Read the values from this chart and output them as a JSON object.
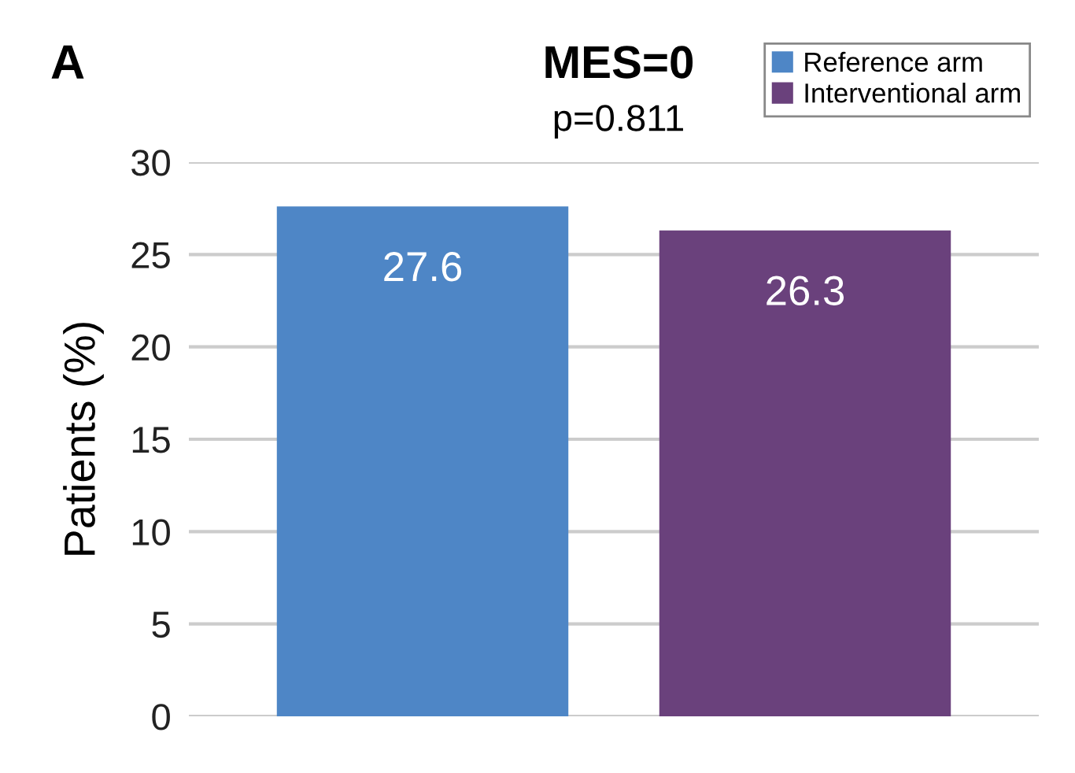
{
  "chart_data": {
    "type": "bar",
    "title": "MES=0",
    "subtitle": "p=0.811",
    "annotations": [
      "A"
    ],
    "ylabel": "Patients (%)",
    "categories": [
      null
    ],
    "series": [
      {
        "name": "Reference arm",
        "color": "#4e86c6",
        "values": [
          27.6
        ]
      },
      {
        "name": "Interventional arm",
        "color": "#6a417c",
        "values": [
          26.3
        ]
      }
    ],
    "ylim": [
      0,
      30
    ],
    "yticks": [
      0,
      5,
      10,
      15,
      20,
      25,
      30
    ],
    "grid": "y",
    "legend": "top right",
    "data_labels": true
  }
}
